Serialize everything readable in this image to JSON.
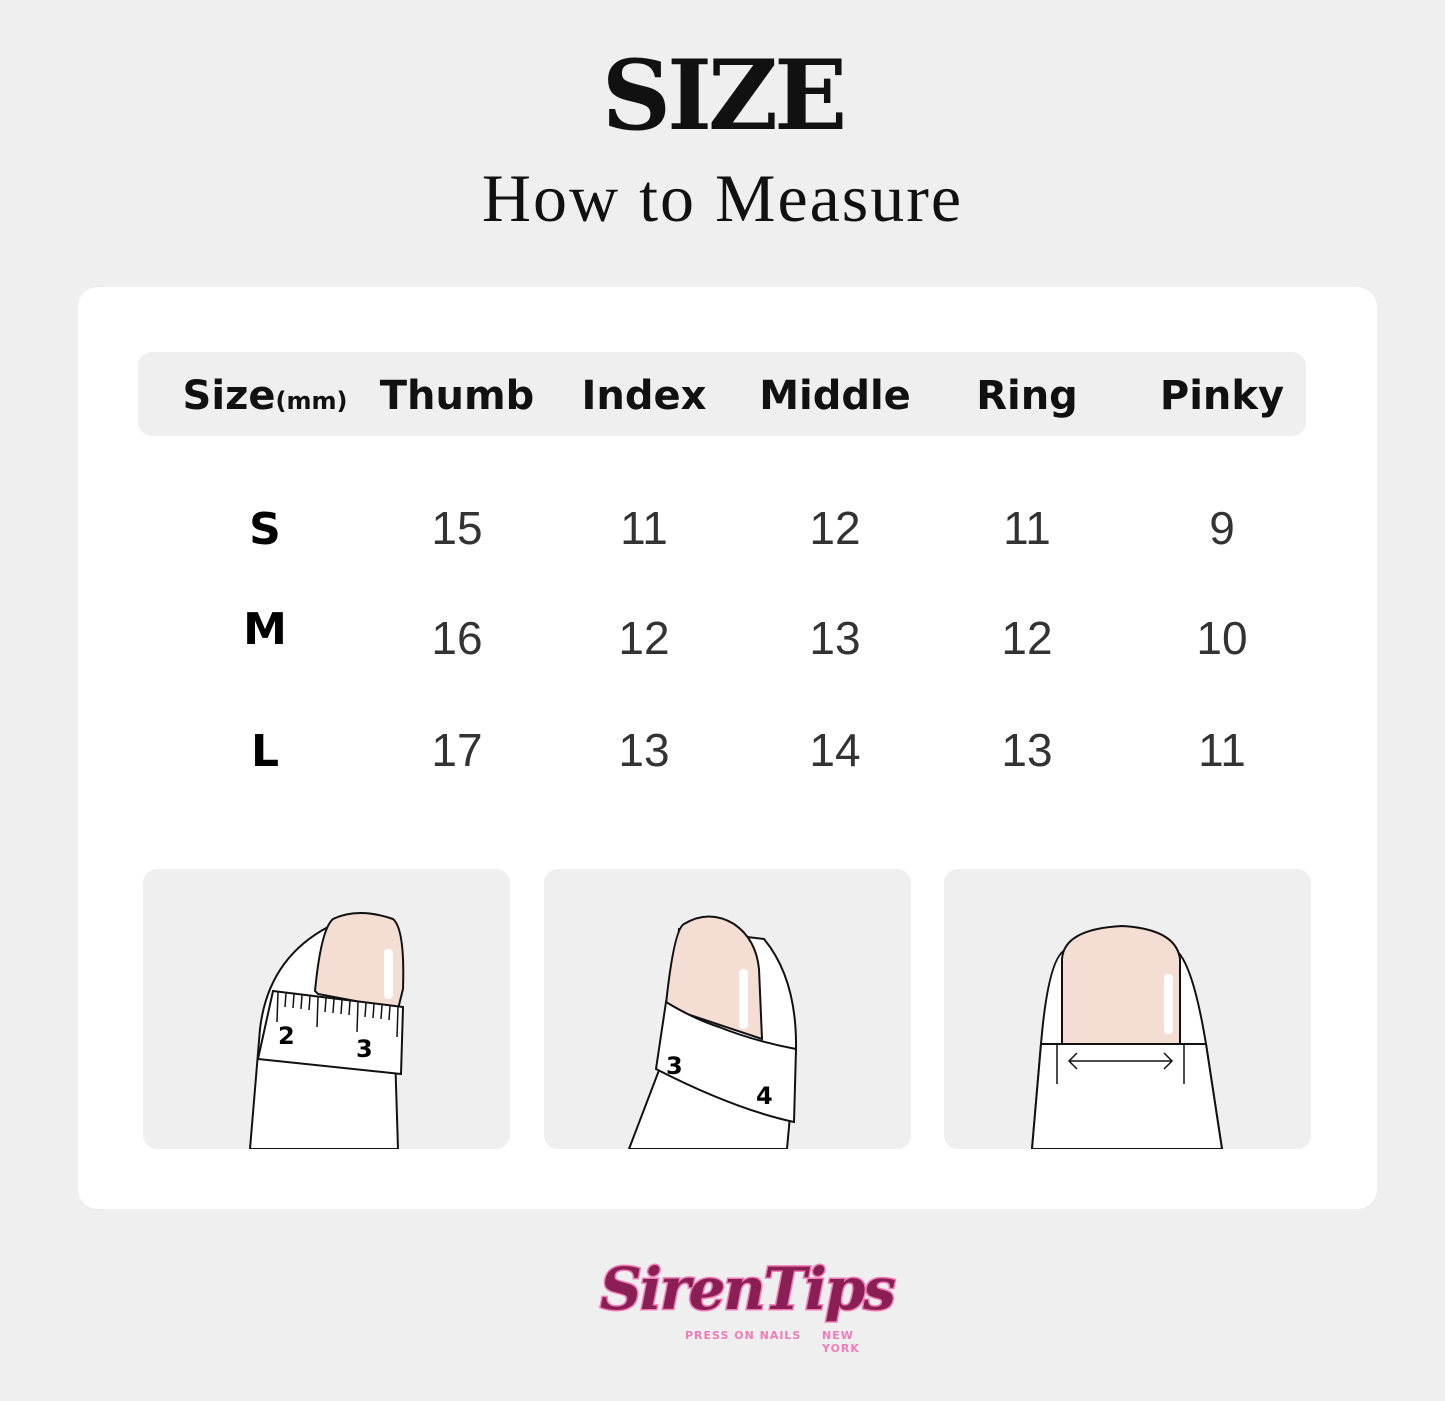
{
  "header": {
    "title": "SIZE",
    "subtitle": "How to Measure"
  },
  "table": {
    "size_label": "Size",
    "unit_label": "(mm)",
    "columns": [
      "Thumb",
      "Index",
      "Middle",
      "Ring",
      "Pinky"
    ],
    "rows": [
      {
        "size": "S",
        "values": [
          "15",
          "11",
          "12",
          "11",
          "9"
        ]
      },
      {
        "size": "M",
        "values": [
          "16",
          "12",
          "13",
          "12",
          "10"
        ]
      },
      {
        "size": "L",
        "values": [
          "17",
          "13",
          "14",
          "13",
          "11"
        ]
      }
    ]
  },
  "illustrations": [
    {
      "name": "thumb-tape-measure",
      "tape_numbers": [
        "2",
        "3"
      ]
    },
    {
      "name": "finger-tape-measure-angled",
      "tape_numbers": [
        "3",
        "4"
      ]
    },
    {
      "name": "nail-width-arrow"
    }
  ],
  "colors": {
    "background": "#efefef",
    "card": "#ffffff",
    "nail": "#f4ddd3",
    "logo_pink": "#f27bb5",
    "logo_dark": "#8a1f55"
  },
  "logo": {
    "brand": "SirenTips",
    "tagline": "PRESS ON NAILS",
    "location": "NEW YORK"
  }
}
